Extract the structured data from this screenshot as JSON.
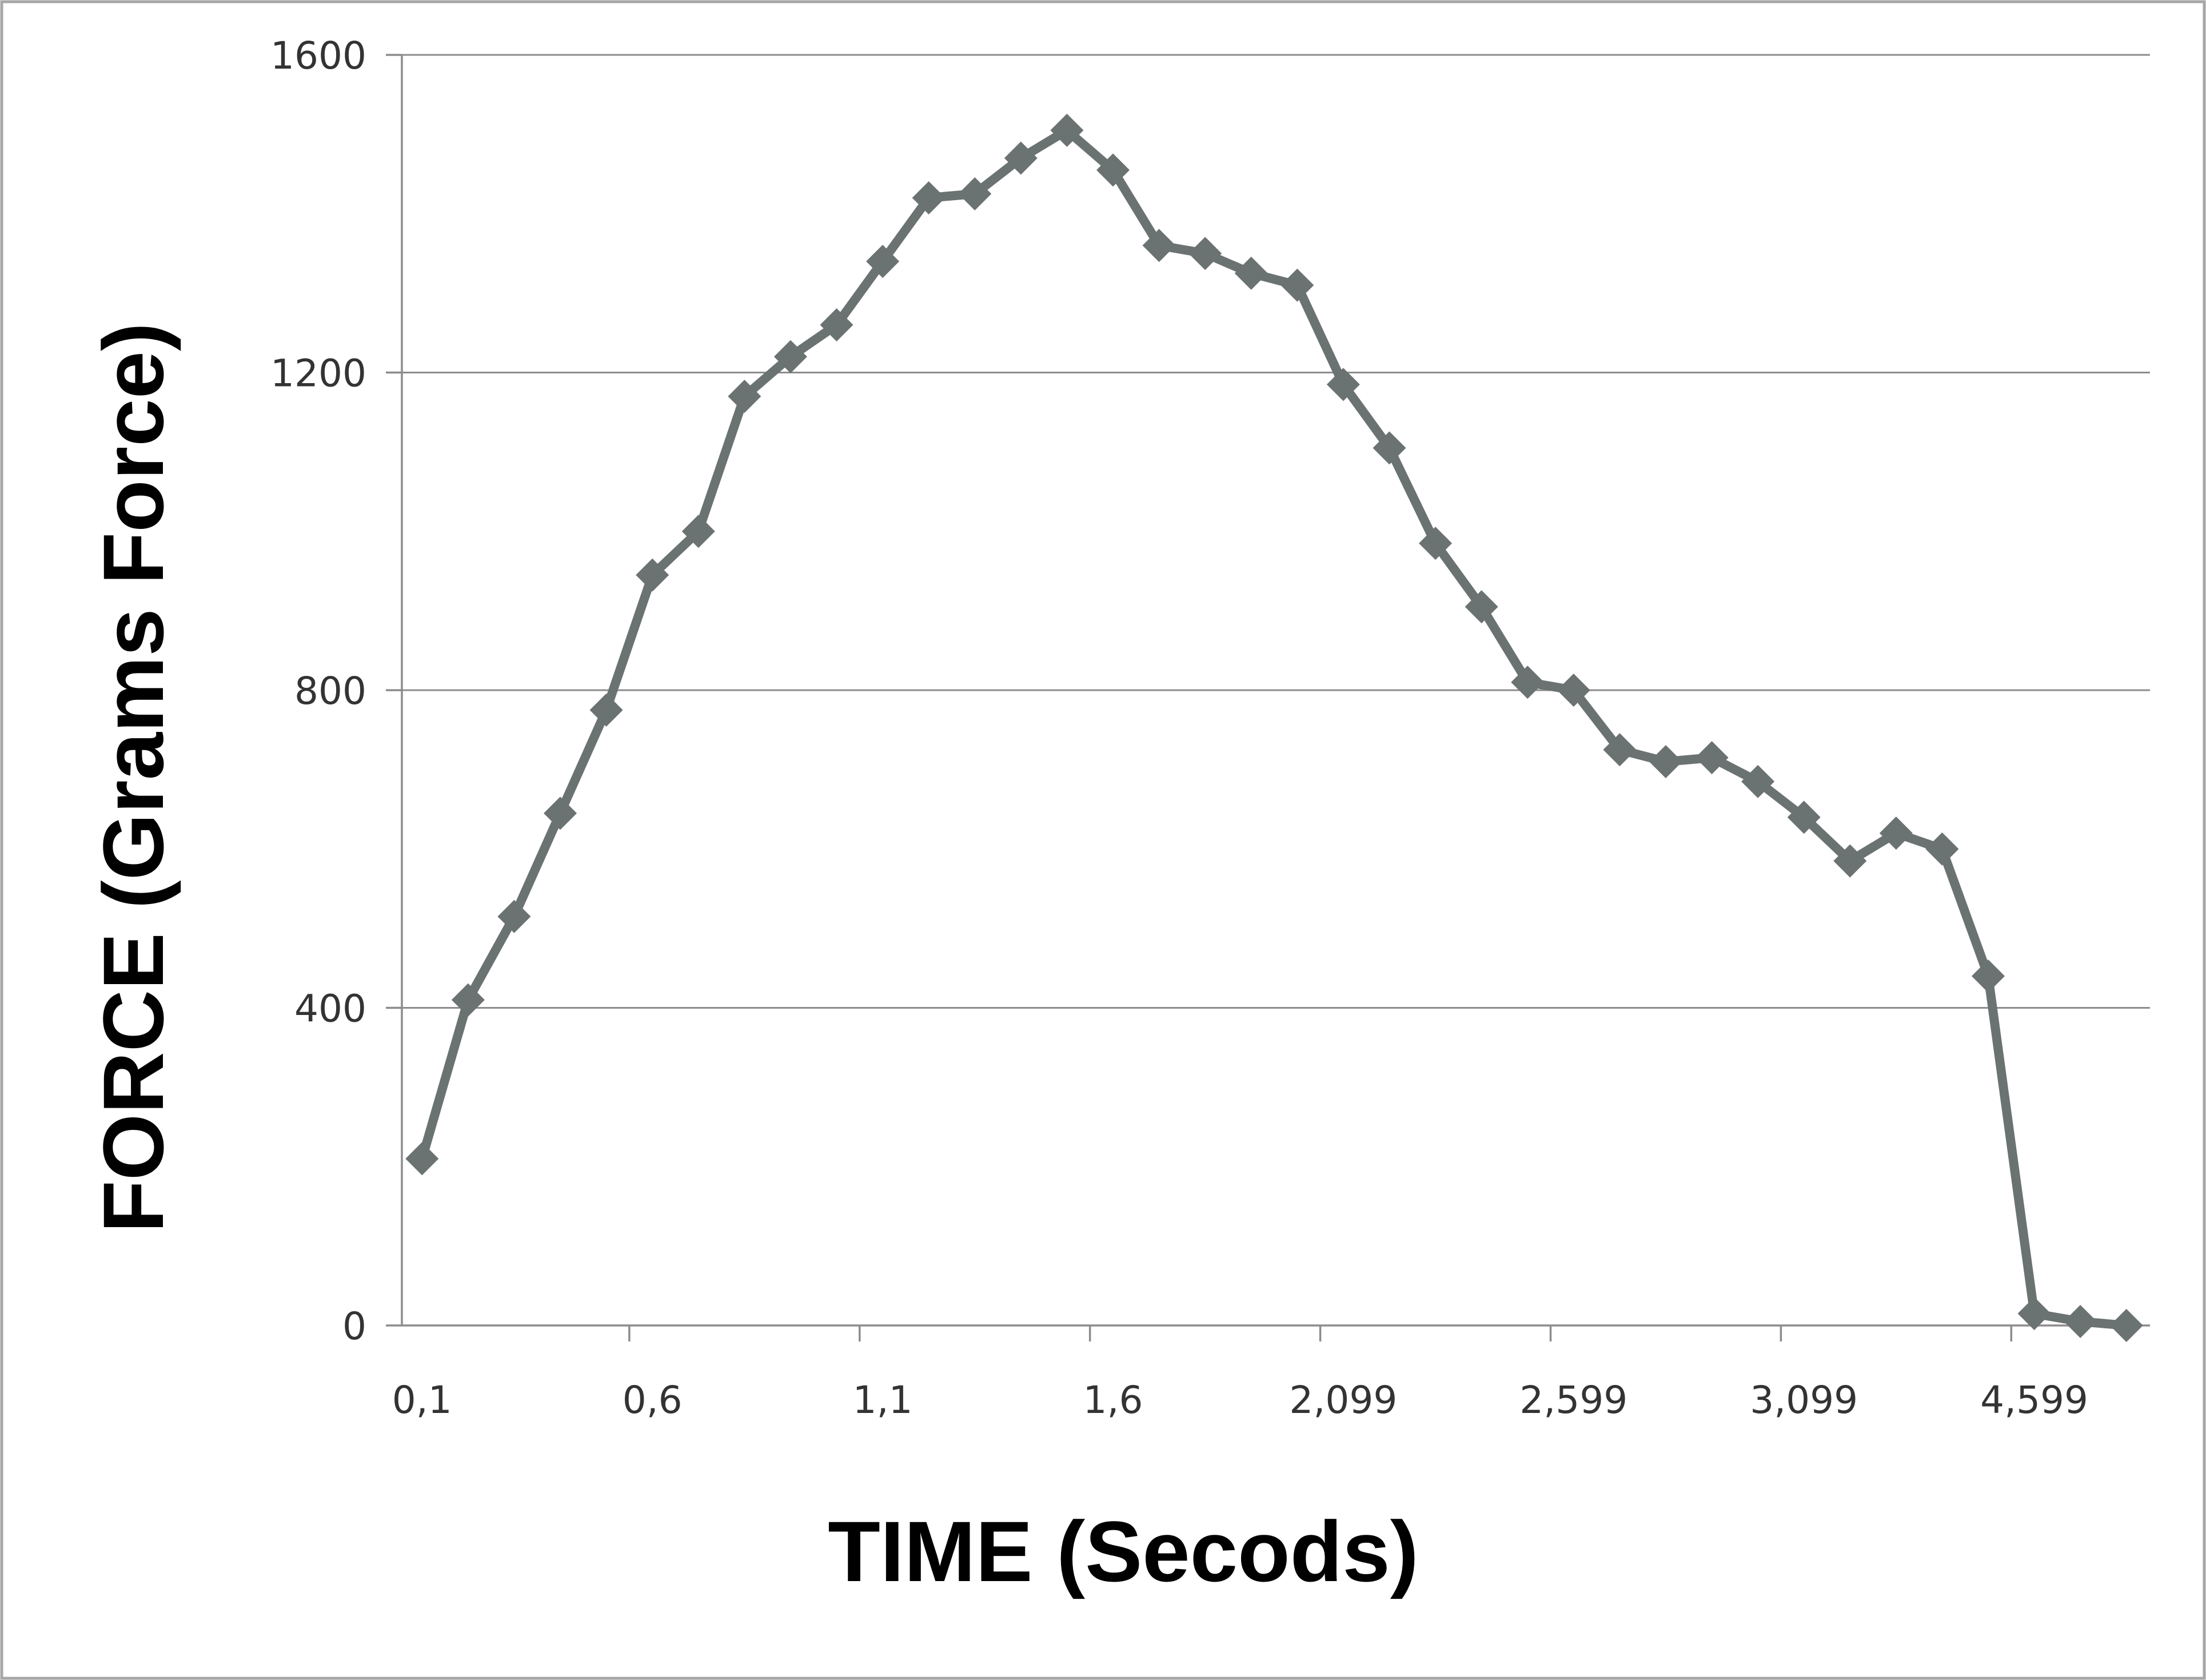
{
  "chart_data": {
    "type": "line",
    "xlabel": "TIME (Secods)",
    "ylabel": "FORCE (Grams Force)",
    "x_tick_labels": [
      "0,1",
      "0,6",
      "1,1",
      "1,6",
      "2,099",
      "2,599",
      "3,099",
      "4,599"
    ],
    "x_tick_every_n_points": 5,
    "ylim": [
      0,
      1600
    ],
    "y_ticks": [
      0,
      400,
      800,
      1200,
      1600
    ],
    "y_tick_labels": [
      "0",
      "400",
      "800",
      "1200",
      "1600"
    ],
    "grid": "horizontal",
    "marker": "diamond",
    "color": "#6b7272",
    "series": [
      {
        "values": [
          210,
          410,
          515,
          645,
          775,
          945,
          1000,
          1170,
          1220,
          1260,
          1340,
          1420,
          1425,
          1470,
          1505,
          1455,
          1360,
          1350,
          1325,
          1310,
          1185,
          1105,
          985,
          905,
          810,
          800,
          725,
          710,
          715,
          685,
          640,
          585,
          620,
          600,
          440,
          15,
          5,
          0
        ]
      }
    ]
  }
}
